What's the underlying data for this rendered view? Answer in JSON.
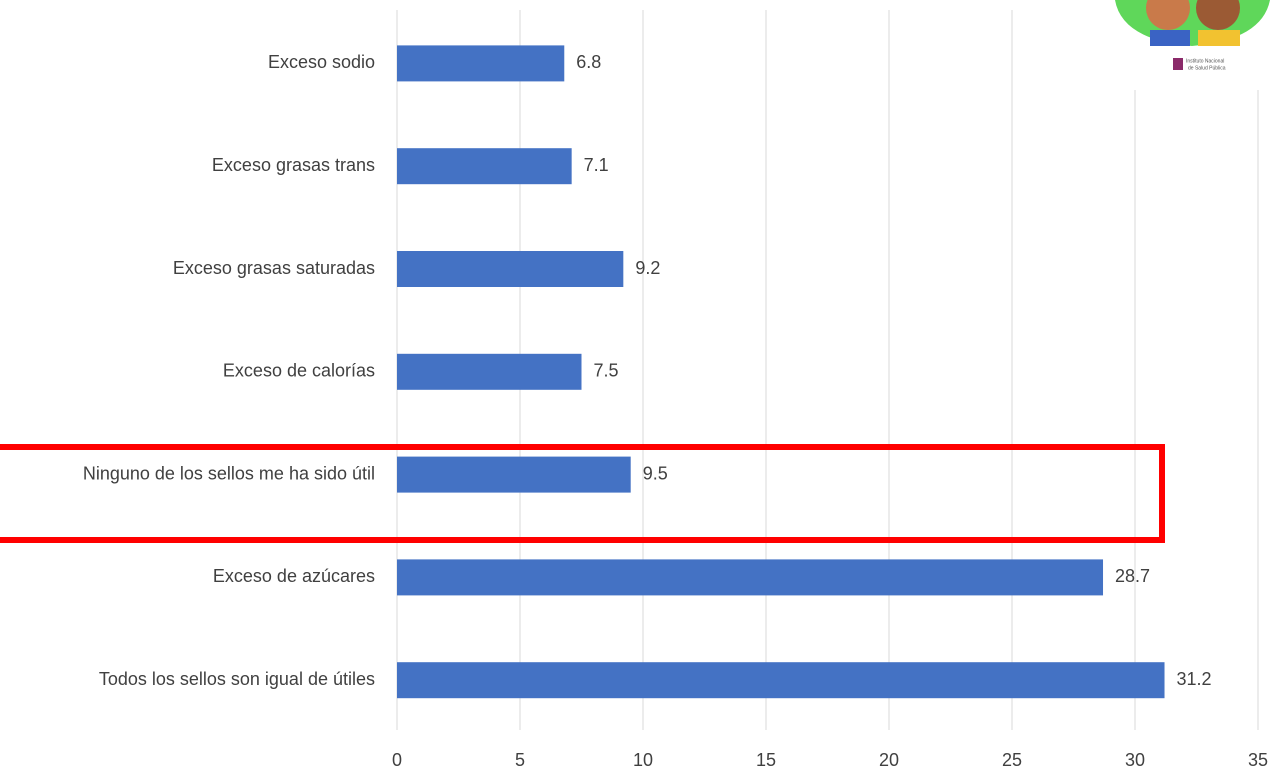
{
  "chart_data": {
    "type": "bar",
    "orientation": "horizontal",
    "categories": [
      "Exceso sodio",
      "Exceso grasas trans",
      "Exceso grasas saturadas",
      "Exceso de calorías",
      "Ninguno de los sellos me ha sido útil",
      "Exceso de azúcares",
      "Todos los sellos son igual de útiles"
    ],
    "values": [
      6.8,
      7.1,
      9.2,
      7.5,
      9.5,
      28.7,
      31.2
    ],
    "color": "#4472c4",
    "xlim": [
      0,
      35
    ],
    "xticks": [
      0,
      5,
      10,
      15,
      20,
      25,
      30,
      35
    ],
    "grid": true
  },
  "logo": {
    "text": [
      "Instituto Nacional",
      "de Salud Pública"
    ]
  }
}
